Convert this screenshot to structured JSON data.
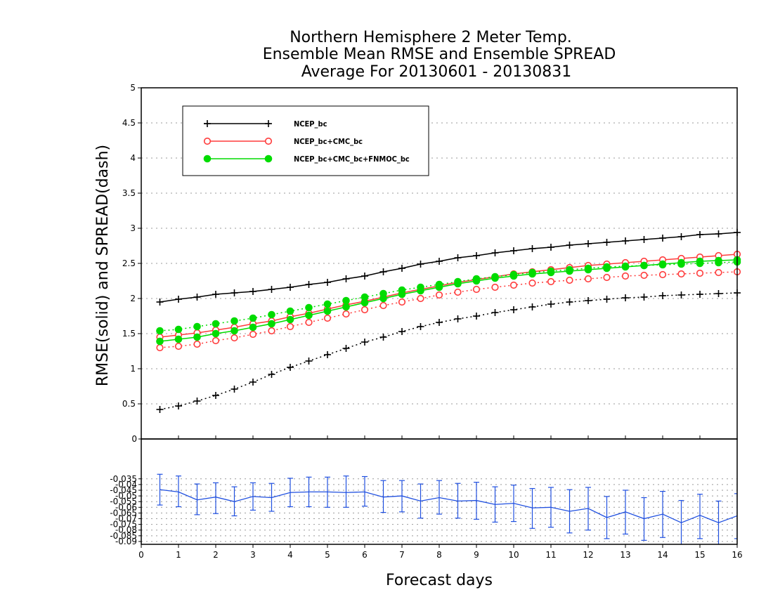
{
  "chart_data": [
    {
      "type": "line",
      "title_lines": [
        "Northern Hemisphere 2 Meter Temp.",
        "Ensemble Mean RMSE and Ensemble SPREAD",
        "Average For 20130601 - 20130831"
      ],
      "ylabel": "RMSE(solid) and SPREAD(dash)",
      "xlabel": "Forecast days",
      "xlim": [
        0,
        16
      ],
      "ylim": [
        0,
        5
      ],
      "x_ticks": [
        "0",
        "1",
        "2",
        "3",
        "4",
        "5",
        "6",
        "7",
        "8",
        "9",
        "10",
        "11",
        "12",
        "13",
        "14",
        "15",
        "16"
      ],
      "y_ticks": [
        "0.5",
        "1",
        "1.5",
        "2",
        "2.5",
        "3",
        "3.5",
        "4",
        "4.5",
        "5"
      ],
      "grid": true,
      "legend_position": "top-left",
      "x": [
        0.5,
        1,
        1.5,
        2,
        2.5,
        3,
        3.5,
        4,
        4.5,
        5,
        5.5,
        6,
        6.5,
        7,
        7.5,
        8,
        8.5,
        9,
        9.5,
        10,
        10.5,
        11,
        11.5,
        12,
        12.5,
        13,
        13.5,
        14,
        14.5,
        15,
        15.5,
        16
      ],
      "series": [
        {
          "name": "NCEP_bc",
          "color": "#000000",
          "marker": "plus",
          "rmse": [
            1.95,
            1.99,
            2.02,
            2.06,
            2.08,
            2.1,
            2.13,
            2.16,
            2.2,
            2.23,
            2.28,
            2.32,
            2.38,
            2.43,
            2.49,
            2.53,
            2.58,
            2.61,
            2.65,
            2.68,
            2.71,
            2.73,
            2.76,
            2.78,
            2.8,
            2.82,
            2.84,
            2.86,
            2.88,
            2.91,
            2.92,
            2.94
          ],
          "spread": [
            0.42,
            0.47,
            0.54,
            0.62,
            0.71,
            0.81,
            0.92,
            1.02,
            1.11,
            1.2,
            1.29,
            1.38,
            1.45,
            1.53,
            1.6,
            1.66,
            1.71,
            1.75,
            1.8,
            1.84,
            1.88,
            1.92,
            1.95,
            1.97,
            1.99,
            2.01,
            2.02,
            2.04,
            2.05,
            2.06,
            2.07,
            2.08
          ]
        },
        {
          "name": "NCEP_bc+CMC_bc",
          "color": "#ff3c3c",
          "marker": "open-circle",
          "rmse": [
            1.45,
            1.48,
            1.51,
            1.55,
            1.59,
            1.64,
            1.68,
            1.74,
            1.79,
            1.85,
            1.91,
            1.96,
            2.02,
            2.08,
            2.13,
            2.18,
            2.23,
            2.27,
            2.31,
            2.35,
            2.38,
            2.41,
            2.44,
            2.47,
            2.49,
            2.51,
            2.53,
            2.55,
            2.57,
            2.59,
            2.61,
            2.63
          ],
          "spread": [
            1.3,
            1.32,
            1.35,
            1.4,
            1.44,
            1.49,
            1.54,
            1.6,
            1.66,
            1.72,
            1.78,
            1.84,
            1.9,
            1.95,
            2.0,
            2.05,
            2.09,
            2.13,
            2.16,
            2.19,
            2.22,
            2.24,
            2.26,
            2.28,
            2.3,
            2.32,
            2.33,
            2.34,
            2.35,
            2.36,
            2.37,
            2.38
          ]
        },
        {
          "name": "NCEP_bc+CMC_bc+FNMOC_bc",
          "color": "#00dc00",
          "marker": "filled-circle",
          "rmse": [
            1.39,
            1.42,
            1.45,
            1.5,
            1.54,
            1.59,
            1.64,
            1.7,
            1.76,
            1.82,
            1.88,
            1.94,
            2.0,
            2.06,
            2.11,
            2.16,
            2.21,
            2.25,
            2.29,
            2.32,
            2.35,
            2.37,
            2.39,
            2.41,
            2.43,
            2.45,
            2.47,
            2.49,
            2.51,
            2.53,
            2.54,
            2.55
          ],
          "spread": [
            1.54,
            1.56,
            1.6,
            1.64,
            1.68,
            1.72,
            1.77,
            1.82,
            1.87,
            1.92,
            1.97,
            2.02,
            2.07,
            2.12,
            2.16,
            2.2,
            2.24,
            2.28,
            2.31,
            2.34,
            2.37,
            2.39,
            2.41,
            2.43,
            2.45,
            2.46,
            2.47,
            2.48,
            2.49,
            2.5,
            2.51,
            2.52
          ]
        }
      ]
    },
    {
      "type": "line",
      "ylim": [
        -0.0925,
        0
      ],
      "y_ticks": [
        "0",
        "-0.035",
        "-0.04",
        "-0.045",
        "-0.05",
        "-0.055",
        "-0.06",
        "-0.065",
        "-0.07",
        "-0.075",
        "-0.08",
        "-0.085",
        "-0.09"
      ],
      "grid": true,
      "series": [
        {
          "color": "#2050e0",
          "x": [
            0.5,
            1,
            1.5,
            2,
            2.5,
            3,
            3.5,
            4,
            4.5,
            5,
            5.5,
            6,
            6.5,
            7,
            7.5,
            8,
            8.5,
            9,
            9.5,
            10,
            10.5,
            11,
            11.5,
            12,
            12.5,
            13,
            13.5,
            14,
            14.5,
            15,
            15.5,
            16
          ],
          "values": [
            -0.0445,
            -0.0465,
            -0.0535,
            -0.051,
            -0.055,
            -0.0505,
            -0.0515,
            -0.047,
            -0.0465,
            -0.0465,
            -0.047,
            -0.0465,
            -0.051,
            -0.05,
            -0.0545,
            -0.0515,
            -0.0545,
            -0.054,
            -0.0575,
            -0.0565,
            -0.0605,
            -0.06,
            -0.0635,
            -0.061,
            -0.069,
            -0.064,
            -0.07,
            -0.066,
            -0.0735,
            -0.067,
            -0.0735,
            -0.0675
          ],
          "err_low": [
            -0.058,
            -0.0595,
            -0.0665,
            -0.0655,
            -0.0675,
            -0.0625,
            -0.0635,
            -0.0595,
            -0.0595,
            -0.06,
            -0.06,
            -0.059,
            -0.0645,
            -0.064,
            -0.0695,
            -0.066,
            -0.0695,
            -0.0705,
            -0.073,
            -0.0725,
            -0.0785,
            -0.0775,
            -0.0825,
            -0.08,
            -0.0875,
            -0.0835,
            -0.089,
            -0.0865,
            -0.093,
            -0.0875,
            -0.093,
            -0.0875
          ],
          "err_high": [
            -0.031,
            -0.0325,
            -0.0395,
            -0.0385,
            -0.042,
            -0.0385,
            -0.039,
            -0.0345,
            -0.0335,
            -0.0335,
            -0.0325,
            -0.033,
            -0.0365,
            -0.0365,
            -0.0395,
            -0.0365,
            -0.039,
            -0.038,
            -0.042,
            -0.0405,
            -0.0435,
            -0.0425,
            -0.0445,
            -0.0425,
            -0.0505,
            -0.045,
            -0.0515,
            -0.046,
            -0.054,
            -0.0485,
            -0.0545,
            -0.048
          ]
        }
      ]
    }
  ]
}
